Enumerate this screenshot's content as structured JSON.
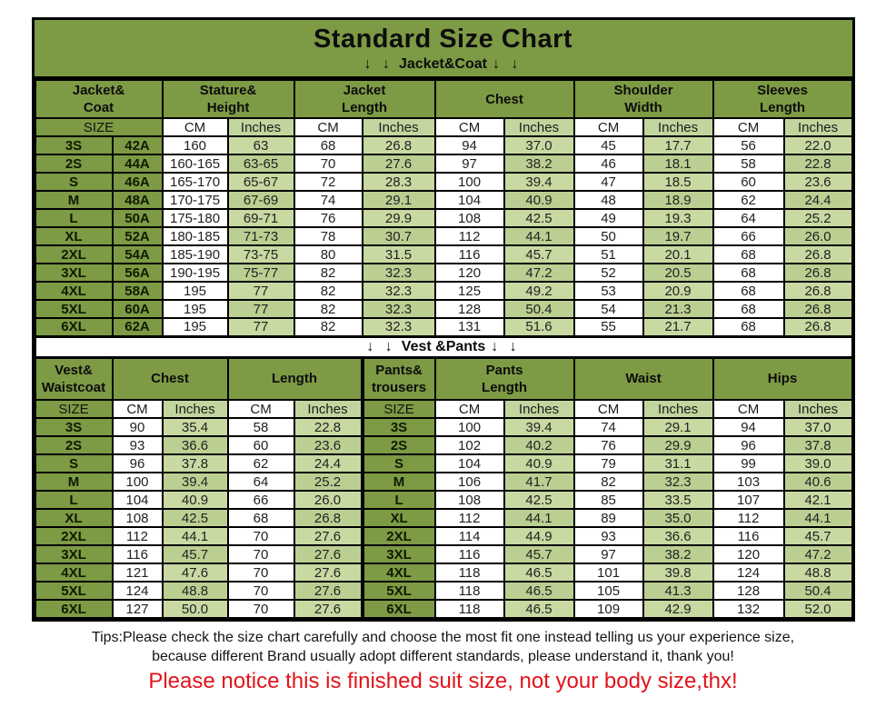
{
  "title": "Standard Size Chart",
  "bands": {
    "jacket": {
      "arrows": "↓ ↓",
      "label": "Jacket&Coat"
    },
    "vest": {
      "arrows": "↓ ↓",
      "label": "Vest &Pants"
    }
  },
  "labels": {
    "size": "SIZE",
    "cm": "CM",
    "inches": "Inches"
  },
  "table1_groups": [
    "Jacket&\nCoat",
    "Stature&\nHeight",
    "Jacket\nLength",
    "Chest",
    "Shoulder\nWidth",
    "Sleeves\nLength"
  ],
  "table2_groups": [
    "Vest&\nWaistcoat",
    "Chest",
    "Length",
    "Pants&\ntrousers",
    "Pants\nLength",
    "Waist",
    "Hips"
  ],
  "chart_data": [
    {
      "type": "table",
      "title": "Jacket&Coat",
      "columns": [
        "SIZE",
        "SIZE CODE",
        "Stature&Height CM",
        "Stature&Height Inches",
        "Jacket Length CM",
        "Jacket Length Inches",
        "Chest CM",
        "Chest Inches",
        "Shoulder Width CM",
        "Shoulder Width Inches",
        "Sleeves Length CM",
        "Sleeves Length Inches"
      ],
      "rows": [
        [
          "3S",
          "42A",
          "160",
          "63",
          "68",
          "26.8",
          "94",
          "37.0",
          "45",
          "17.7",
          "56",
          "22.0"
        ],
        [
          "2S",
          "44A",
          "160-165",
          "63-65",
          "70",
          "27.6",
          "97",
          "38.2",
          "46",
          "18.1",
          "58",
          "22.8"
        ],
        [
          "S",
          "46A",
          "165-170",
          "65-67",
          "72",
          "28.3",
          "100",
          "39.4",
          "47",
          "18.5",
          "60",
          "23.6"
        ],
        [
          "M",
          "48A",
          "170-175",
          "67-69",
          "74",
          "29.1",
          "104",
          "40.9",
          "48",
          "18.9",
          "62",
          "24.4"
        ],
        [
          "L",
          "50A",
          "175-180",
          "69-71",
          "76",
          "29.9",
          "108",
          "42.5",
          "49",
          "19.3",
          "64",
          "25.2"
        ],
        [
          "XL",
          "52A",
          "180-185",
          "71-73",
          "78",
          "30.7",
          "112",
          "44.1",
          "50",
          "19.7",
          "66",
          "26.0"
        ],
        [
          "2XL",
          "54A",
          "185-190",
          "73-75",
          "80",
          "31.5",
          "116",
          "45.7",
          "51",
          "20.1",
          "68",
          "26.8"
        ],
        [
          "3XL",
          "56A",
          "190-195",
          "75-77",
          "82",
          "32.3",
          "120",
          "47.2",
          "52",
          "20.5",
          "68",
          "26.8"
        ],
        [
          "4XL",
          "58A",
          "195",
          "77",
          "82",
          "32.3",
          "125",
          "49.2",
          "53",
          "20.9",
          "68",
          "26.8"
        ],
        [
          "5XL",
          "60A",
          "195",
          "77",
          "82",
          "32.3",
          "128",
          "50.4",
          "54",
          "21.3",
          "68",
          "26.8"
        ],
        [
          "6XL",
          "62A",
          "195",
          "77",
          "82",
          "32.3",
          "131",
          "51.6",
          "55",
          "21.7",
          "68",
          "26.8"
        ]
      ]
    },
    {
      "type": "table",
      "title": "Vest &Pants",
      "columns": [
        "Vest SIZE",
        "Chest CM",
        "Chest Inches",
        "Length CM",
        "Length Inches",
        "Pants SIZE",
        "Pants Length CM",
        "Pants Length Inches",
        "Waist CM",
        "Waist Inches",
        "Hips CM",
        "Hips Inches"
      ],
      "rows": [
        [
          "3S",
          "90",
          "35.4",
          "58",
          "22.8",
          "3S",
          "100",
          "39.4",
          "74",
          "29.1",
          "94",
          "37.0"
        ],
        [
          "2S",
          "93",
          "36.6",
          "60",
          "23.6",
          "2S",
          "102",
          "40.2",
          "76",
          "29.9",
          "96",
          "37.8"
        ],
        [
          "S",
          "96",
          "37.8",
          "62",
          "24.4",
          "S",
          "104",
          "40.9",
          "79",
          "31.1",
          "99",
          "39.0"
        ],
        [
          "M",
          "100",
          "39.4",
          "64",
          "25.2",
          "M",
          "106",
          "41.7",
          "82",
          "32.3",
          "103",
          "40.6"
        ],
        [
          "L",
          "104",
          "40.9",
          "66",
          "26.0",
          "L",
          "108",
          "42.5",
          "85",
          "33.5",
          "107",
          "42.1"
        ],
        [
          "XL",
          "108",
          "42.5",
          "68",
          "26.8",
          "XL",
          "112",
          "44.1",
          "89",
          "35.0",
          "112",
          "44.1"
        ],
        [
          "2XL",
          "112",
          "44.1",
          "70",
          "27.6",
          "2XL",
          "114",
          "44.9",
          "93",
          "36.6",
          "116",
          "45.7"
        ],
        [
          "3XL",
          "116",
          "45.7",
          "70",
          "27.6",
          "3XL",
          "116",
          "45.7",
          "97",
          "38.2",
          "120",
          "47.2"
        ],
        [
          "4XL",
          "121",
          "47.6",
          "70",
          "27.6",
          "4XL",
          "118",
          "46.5",
          "101",
          "39.8",
          "124",
          "48.8"
        ],
        [
          "5XL",
          "124",
          "48.8",
          "70",
          "27.6",
          "5XL",
          "118",
          "46.5",
          "105",
          "41.3",
          "128",
          "50.4"
        ],
        [
          "6XL",
          "127",
          "50.0",
          "70",
          "27.6",
          "6XL",
          "118",
          "46.5",
          "109",
          "42.9",
          "132",
          "52.0"
        ]
      ]
    }
  ],
  "footer": {
    "tips_line1": "Tips:Please check the size chart carefully and choose the most fit one instead telling us your experience size,",
    "tips_line2": "because different Brand usually adopt different standards, please understand it, thank you!",
    "notice": "Please notice this is finished suit size, not your body size,thx!"
  },
  "colors": {
    "olive_green": "#7d9a44",
    "light_green": "#c8d9a2",
    "light_green_alt": "#bccf92",
    "notice_red": "#e2131a",
    "border_black": "#000000"
  }
}
